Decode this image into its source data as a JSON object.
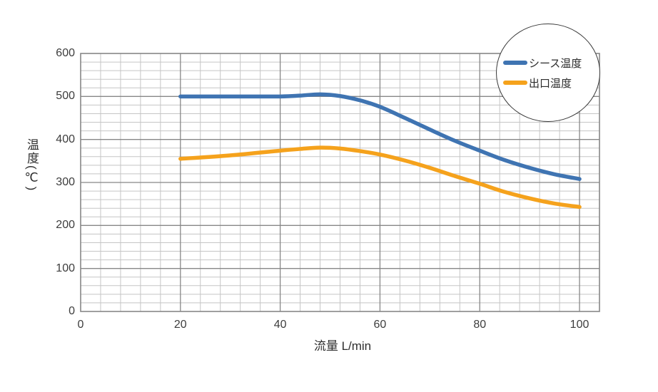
{
  "chart_data": {
    "type": "line",
    "title": "",
    "xlabel": "流量 L/min",
    "ylabel": "温度(℃)",
    "xlim": [
      0,
      104
    ],
    "ylim": [
      0,
      600
    ],
    "xticks": [
      0,
      20,
      40,
      60,
      80,
      100
    ],
    "yticks": [
      0,
      100,
      200,
      300,
      400,
      500,
      600
    ],
    "x_minor_step": 4,
    "y_minor_step": 20,
    "grid": "major+minor",
    "legend_position": "top-right-circle",
    "x": [
      20,
      30,
      40,
      44,
      48,
      52,
      56,
      60,
      65,
      70,
      75,
      80,
      85,
      90,
      95,
      100
    ],
    "series": [
      {
        "name": "シース温度",
        "color": "#3f74b2",
        "values": [
          500,
          500,
          500,
          502,
          505,
          501,
          491,
          476,
          450,
          423,
          397,
          374,
          352,
          334,
          319,
          308
        ]
      },
      {
        "name": "出口温度",
        "color": "#f5a21c",
        "values": [
          355,
          363,
          374,
          378,
          381,
          379,
          373,
          365,
          351,
          334,
          315,
          297,
          278,
          263,
          251,
          243
        ]
      }
    ]
  },
  "colors": {
    "background": "#ffffff",
    "grid_minor": "#c5c5c5",
    "grid_major": "#878787",
    "plot_border": "#878787",
    "axis_text": "#3d3d3d",
    "legend_border": "#3a3a3a"
  }
}
